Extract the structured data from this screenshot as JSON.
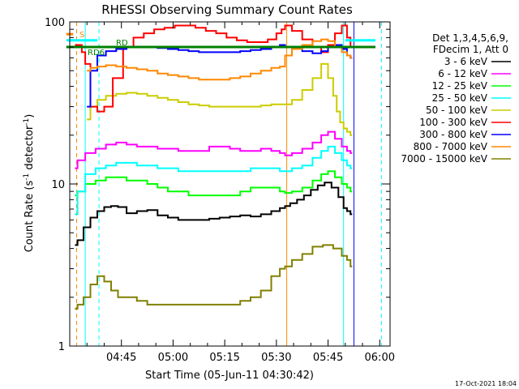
{
  "chart_data": {
    "type": "line",
    "title": "RHESSI Observing Summary Count Rates",
    "xlabel": "Start Time (05-Jun-11 04:30:42)",
    "ylabel_main": "Count Rate (s",
    "ylabel_sup1": "-1",
    "ylabel_mid": " detector",
    "ylabel_sup2": "-1",
    "ylabel_end": ")",
    "yscale": "log",
    "ylim": [
      1,
      100
    ],
    "xlim_minutes": [
      0,
      93
    ],
    "x_ticks": [
      {
        "label": "04:45",
        "minute": 15
      },
      {
        "label": "05:00",
        "minute": 30
      },
      {
        "label": "05:15",
        "minute": 45
      },
      {
        "label": "05:30",
        "minute": 60
      },
      {
        "label": "05:45",
        "minute": 75
      },
      {
        "label": "06:00",
        "minute": 90
      }
    ],
    "y_ticks": [
      {
        "label": "1",
        "value": 1
      },
      {
        "label": "10",
        "value": 10
      },
      {
        "label": "100",
        "value": 100
      }
    ],
    "legend": {
      "placement": "right",
      "header": [
        "Det 1,3,4,5,6,9,",
        "FDecim 1, Att 0"
      ],
      "entries": [
        {
          "name": "3 - 6 keV",
          "color": "#000000"
        },
        {
          "name": "6 - 12 keV",
          "color": "#ff00ff"
        },
        {
          "name": "12 - 25 keV",
          "color": "#00ff00"
        },
        {
          "name": "25 - 50 keV",
          "color": "#00ffff"
        },
        {
          "name": "50 - 100 keV",
          "color": "#cccc00"
        },
        {
          "name": "100 - 300 keV",
          "color": "#ff0000"
        },
        {
          "name": "300 - 800 keV",
          "color": "#0000ff"
        },
        {
          "name": "800 - 7000 keV",
          "color": "#ff8800"
        },
        {
          "name": "7000 - 15000 keV",
          "color": "#808000"
        }
      ]
    },
    "flags": [
      {
        "name": "S",
        "color": "#ff8800"
      },
      {
        "name": "RD6",
        "color": "#008000"
      },
      {
        "name": "RD",
        "color": "#008000"
      }
    ],
    "series": [
      {
        "name": "3 - 6 keV",
        "color": "#000000",
        "x": [
          1.5,
          3,
          5,
          7,
          9,
          11,
          13,
          15,
          18,
          21,
          24,
          27,
          30,
          33,
          36,
          39,
          42,
          45,
          48,
          51,
          54,
          57,
          60,
          62,
          63,
          65,
          67,
          69,
          71,
          73,
          75,
          77,
          79,
          80,
          81,
          82
        ],
        "y": [
          4.2,
          4.5,
          5.4,
          6.2,
          6.8,
          7.2,
          7.3,
          7.2,
          6.6,
          6.8,
          6.9,
          6.4,
          6.2,
          6.0,
          6.0,
          6.0,
          6.1,
          6.2,
          6.3,
          6.4,
          6.3,
          6.5,
          6.8,
          7.1,
          7.3,
          7.6,
          8.0,
          8.5,
          9.2,
          9.8,
          10.2,
          9.5,
          8.3,
          7.1,
          6.8,
          6.5
        ]
      },
      {
        "name": "6 - 12 keV",
        "color": "#ff00ff",
        "x": [
          1.5,
          3,
          6,
          9,
          12,
          15,
          18,
          21,
          24,
          27,
          30,
          33,
          36,
          39,
          42,
          45,
          48,
          51,
          54,
          57,
          60,
          62,
          63,
          66,
          69,
          72,
          74,
          76,
          78,
          80,
          81,
          82
        ],
        "y": [
          12.5,
          14,
          15.5,
          16.5,
          17.5,
          18,
          17.5,
          17,
          17,
          16.5,
          16.5,
          16,
          16,
          16,
          17,
          17,
          16.5,
          16,
          16,
          16.5,
          16,
          15.5,
          15,
          15.5,
          16.5,
          18,
          20,
          21,
          19,
          17,
          16,
          15.5
        ]
      },
      {
        "name": "12 - 25 keV",
        "color": "#00ff00",
        "x": [
          1.5,
          3,
          6,
          9,
          12,
          15,
          18,
          21,
          24,
          27,
          30,
          33,
          36,
          39,
          42,
          45,
          48,
          51,
          54,
          57,
          60,
          62,
          63,
          66,
          69,
          72,
          74,
          76,
          78,
          80,
          81,
          82
        ],
        "y": [
          8.5,
          9,
          10,
          10.5,
          11,
          11,
          10.5,
          10.5,
          10,
          9.5,
          9,
          9,
          8.5,
          8.5,
          8.5,
          8.5,
          8.5,
          9,
          9.5,
          9.5,
          9.5,
          9,
          8.8,
          9,
          9.5,
          10.5,
          11.5,
          12,
          11,
          10,
          9.5,
          9
        ]
      },
      {
        "name": "25 - 50 keV",
        "color": "#00ffff",
        "x": [
          1.5,
          3,
          6,
          9,
          12,
          15,
          18,
          21,
          24,
          27,
          30,
          33,
          36,
          39,
          42,
          45,
          48,
          51,
          54,
          57,
          60,
          62,
          63,
          66,
          69,
          72,
          74,
          76,
          78,
          80,
          81,
          82
        ],
        "y": [
          6.5,
          9,
          11.5,
          12.5,
          13,
          13.5,
          13.5,
          13,
          13,
          12.5,
          12.5,
          12,
          12,
          12,
          12,
          12,
          12,
          12,
          12.5,
          12.5,
          12.5,
          12,
          12,
          12.5,
          13,
          14.5,
          16,
          17,
          15.5,
          14,
          13,
          12.5
        ]
      },
      {
        "name": "50 - 100 keV",
        "color": "#cccc00",
        "x": [
          5,
          7,
          9,
          12,
          15,
          18,
          21,
          24,
          27,
          30,
          33,
          36,
          39,
          42,
          45,
          48,
          51,
          54,
          57,
          60,
          62,
          63,
          66,
          69,
          72,
          74,
          76,
          77,
          78,
          79,
          80,
          81,
          82
        ],
        "y": [
          25,
          30,
          33,
          35,
          36,
          36.5,
          36,
          35,
          34,
          33,
          32,
          31,
          30.5,
          30,
          30,
          30,
          30,
          30,
          30.5,
          31,
          31,
          31,
          33,
          38,
          45,
          55,
          45,
          35,
          28,
          24,
          22,
          21,
          20
        ]
      },
      {
        "name": "100 - 300 keV",
        "color": "#ff0000",
        "x": [
          1.5,
          3,
          4,
          5,
          7,
          9,
          11,
          14,
          17,
          20,
          23,
          26,
          29,
          32,
          35,
          38,
          41,
          44,
          47,
          50,
          53,
          56,
          59,
          61,
          62,
          63,
          66,
          69,
          72,
          74,
          76,
          78,
          80,
          81,
          82
        ],
        "y": [
          72,
          72,
          65,
          55,
          30,
          28,
          30,
          45,
          70,
          80,
          85,
          90,
          92,
          95,
          95,
          92,
          88,
          85,
          80,
          77,
          75,
          75,
          78,
          85,
          90,
          95,
          88,
          78,
          70,
          65,
          72,
          85,
          95,
          80,
          70
        ]
      },
      {
        "name": "300 - 800 keV",
        "color": "#0000ff",
        "x": [
          5,
          7,
          9,
          12,
          15,
          18,
          21,
          24,
          27,
          30,
          33,
          36,
          39,
          42,
          45,
          48,
          51,
          54,
          57,
          60,
          62,
          63,
          66,
          69,
          72,
          74,
          76,
          78,
          80,
          81,
          82
        ],
        "y": [
          30,
          50,
          62,
          66,
          68,
          70,
          70,
          70,
          69,
          68,
          67,
          66,
          65,
          65,
          65,
          65,
          66,
          67,
          68,
          70,
          72,
          70,
          68,
          66,
          64,
          66,
          70,
          72,
          68,
          62,
          60
        ]
      },
      {
        "name": "800 - 7000 keV",
        "color": "#ff8800",
        "x": [
          5,
          7,
          9,
          12,
          15,
          18,
          21,
          24,
          27,
          30,
          33,
          36,
          39,
          42,
          45,
          48,
          51,
          54,
          57,
          60,
          62,
          63,
          66,
          69,
          72,
          74,
          76,
          78,
          80,
          81,
          82
        ],
        "y": [
          50,
          52,
          53,
          54,
          53,
          52,
          51,
          50,
          48,
          47,
          46,
          45,
          44,
          44,
          44,
          45,
          46,
          48,
          50,
          52,
          53,
          62,
          68,
          72,
          76,
          78,
          76,
          70,
          65,
          62,
          60
        ]
      },
      {
        "name": "7000 - 15000 keV",
        "color": "#808000",
        "x": [
          1.5,
          3,
          5,
          7,
          9,
          11,
          13,
          15,
          18,
          21,
          24,
          27,
          30,
          33,
          36,
          39,
          42,
          45,
          48,
          51,
          54,
          57,
          60,
          62,
          63,
          66,
          69,
          72,
          75,
          78,
          80,
          81,
          82
        ],
        "y": [
          1.7,
          1.8,
          2,
          2.4,
          2.7,
          2.5,
          2.2,
          2,
          2,
          1.9,
          1.8,
          1.8,
          1.8,
          1.8,
          1.8,
          1.8,
          1.8,
          1.8,
          1.8,
          1.9,
          2,
          2.2,
          2.7,
          3,
          3.1,
          3.4,
          3.7,
          4.1,
          4.2,
          4.0,
          3.6,
          3.4,
          3.1
        ]
      }
    ],
    "horizontal_levels": [
      {
        "name": "S",
        "color": "#ff8800",
        "y": 84,
        "x": [
          -1,
          1
        ]
      },
      {
        "name": "RD6",
        "color": "#008000",
        "y": 70,
        "x": [
          -1,
          7
        ]
      },
      {
        "name": "flag-cyan",
        "color": "#00ffff",
        "y": 77,
        "x": [
          -1,
          8
        ]
      },
      {
        "name": "flag-cyan-right",
        "color": "#00ffff",
        "y": 77,
        "x": [
          80,
          92
        ]
      },
      {
        "name": "RD",
        "color": "#008000",
        "y": 70,
        "x": [
          6,
          92
        ]
      }
    ],
    "vertical_markers": [
      {
        "name": "orange-dash",
        "color": "#ff8800",
        "x": 2,
        "style": "dashed"
      },
      {
        "name": "cyan-solid-1",
        "color": "#00ffff",
        "x": 4.5,
        "style": "solid"
      },
      {
        "name": "cyan-dash-1",
        "color": "#00ffff",
        "x": 8.5,
        "style": "dashed"
      },
      {
        "name": "cyan-solid-2",
        "color": "#00ffff",
        "x": 79.5,
        "style": "solid"
      },
      {
        "name": "cyan-dash-2",
        "color": "#00ffff",
        "x": 90.5,
        "style": "dashed"
      },
      {
        "name": "blue-solid",
        "color": "#0000ff",
        "x": 82.5,
        "style": "solid"
      },
      {
        "name": "orange-solid",
        "color": "#ff8800",
        "x": 63,
        "style": "solid"
      }
    ],
    "grid": false
  },
  "footer": {
    "timestamp": "17-Oct-2021 18:04"
  }
}
